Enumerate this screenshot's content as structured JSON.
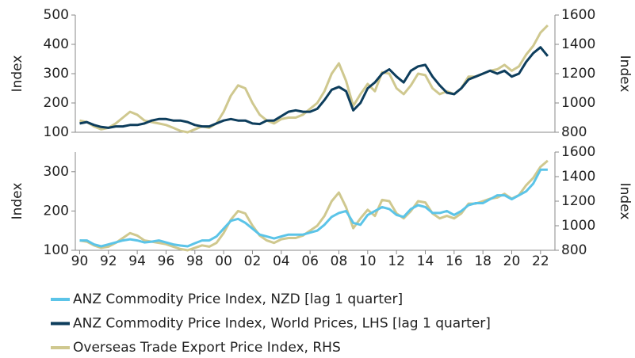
{
  "chart_data": [
    {
      "type": "line",
      "x": [
        1990,
        1990.5,
        1991,
        1991.5,
        1992,
        1992.5,
        1993,
        1993.5,
        1994,
        1994.5,
        1995,
        1995.5,
        1996,
        1996.5,
        1997,
        1997.5,
        1998,
        1998.5,
        1999,
        1999.5,
        2000,
        2000.5,
        2001,
        2001.5,
        2002,
        2002.5,
        2003,
        2003.5,
        2004,
        2004.5,
        2005,
        2005.5,
        2006,
        2006.5,
        2007,
        2007.5,
        2008,
        2008.5,
        2009,
        2009.5,
        2010,
        2010.5,
        2011,
        2011.5,
        2012,
        2012.5,
        2013,
        2013.5,
        2014,
        2014.5,
        2015,
        2015.5,
        2016,
        2016.5,
        2017,
        2017.5,
        2018,
        2018.5,
        2019,
        2019.5,
        2020,
        2020.5,
        2021,
        2021.5,
        2022,
        2022.5
      ],
      "series": [
        {
          "color": "#cfc88f",
          "axis": "y2",
          "values": [
            880,
            870,
            840,
            820,
            830,
            860,
            900,
            940,
            920,
            880,
            870,
            860,
            850,
            830,
            810,
            800,
            820,
            840,
            830,
            860,
            940,
            1050,
            1120,
            1100,
            1000,
            920,
            880,
            860,
            890,
            900,
            900,
            920,
            960,
            1000,
            1080,
            1200,
            1270,
            1150,
            980,
            1060,
            1130,
            1080,
            1210,
            1200,
            1100,
            1060,
            1120,
            1200,
            1190,
            1100,
            1060,
            1080,
            1060,
            1100,
            1180,
            1180,
            1200,
            1220,
            1230,
            1260,
            1220,
            1250,
            1330,
            1390,
            1480,
            1530
          ]
        },
        {
          "color": "#0d3d5c",
          "values": [
            130,
            135,
            125,
            118,
            115,
            120,
            120,
            125,
            125,
            130,
            140,
            145,
            145,
            140,
            140,
            135,
            125,
            120,
            120,
            130,
            140,
            145,
            140,
            140,
            130,
            128,
            140,
            140,
            155,
            170,
            175,
            170,
            170,
            180,
            210,
            245,
            255,
            240,
            175,
            200,
            250,
            270,
            300,
            315,
            290,
            270,
            310,
            325,
            330,
            290,
            260,
            235,
            230,
            250,
            280,
            290,
            300,
            310,
            300,
            310,
            290,
            300,
            340,
            370,
            390,
            360
          ]
        }
      ],
      "xlim": [
        1989.7,
        2023
      ],
      "ylim": [
        100,
        500
      ],
      "yticks": [
        100,
        200,
        300,
        400,
        500
      ],
      "y2lim": [
        800,
        1600
      ],
      "y2ticks": [
        800,
        1000,
        1200,
        1400,
        1600
      ],
      "ylabel": "Index",
      "y2label": "Index"
    },
    {
      "type": "line",
      "x": [
        1990,
        1990.5,
        1991,
        1991.5,
        1992,
        1992.5,
        1993,
        1993.5,
        1994,
        1994.5,
        1995,
        1995.5,
        1996,
        1996.5,
        1997,
        1997.5,
        1998,
        1998.5,
        1999,
        1999.5,
        2000,
        2000.5,
        2001,
        2001.5,
        2002,
        2002.5,
        2003,
        2003.5,
        2004,
        2004.5,
        2005,
        2005.5,
        2006,
        2006.5,
        2007,
        2007.5,
        2008,
        2008.5,
        2009,
        2009.5,
        2010,
        2010.5,
        2011,
        2011.5,
        2012,
        2012.5,
        2013,
        2013.5,
        2014,
        2014.5,
        2015,
        2015.5,
        2016,
        2016.5,
        2017,
        2017.5,
        2018,
        2018.5,
        2019,
        2019.5,
        2020,
        2020.5,
        2021,
        2021.5,
        2022,
        2022.5
      ],
      "series": [
        {
          "color": "#cfc88f",
          "axis": "y2",
          "values": [
            880,
            870,
            840,
            820,
            830,
            860,
            900,
            940,
            920,
            880,
            870,
            860,
            850,
            830,
            810,
            800,
            820,
            840,
            830,
            860,
            940,
            1050,
            1120,
            1100,
            1000,
            920,
            880,
            860,
            890,
            900,
            900,
            920,
            960,
            1000,
            1080,
            1200,
            1270,
            1150,
            980,
            1060,
            1130,
            1080,
            1210,
            1200,
            1100,
            1060,
            1120,
            1200,
            1190,
            1100,
            1060,
            1080,
            1060,
            1100,
            1180,
            1180,
            1200,
            1220,
            1230,
            1260,
            1220,
            1250,
            1330,
            1390,
            1480,
            1530
          ]
        },
        {
          "color": "#5bc4e8",
          "values": [
            125,
            125,
            115,
            110,
            115,
            120,
            125,
            128,
            125,
            120,
            122,
            125,
            120,
            115,
            112,
            110,
            118,
            125,
            125,
            135,
            155,
            175,
            180,
            170,
            155,
            140,
            135,
            130,
            135,
            140,
            140,
            140,
            145,
            150,
            165,
            185,
            195,
            200,
            170,
            165,
            190,
            200,
            210,
            205,
            190,
            185,
            205,
            215,
            210,
            195,
            195,
            200,
            190,
            200,
            215,
            220,
            220,
            230,
            240,
            240,
            230,
            240,
            250,
            270,
            305,
            305
          ]
        }
      ],
      "xlim": [
        1989.7,
        2023
      ],
      "xticks": [
        {
          "value": 1990,
          "label": "90"
        },
        {
          "value": 1992,
          "label": "92"
        },
        {
          "value": 1994,
          "label": "94"
        },
        {
          "value": 1996,
          "label": "96"
        },
        {
          "value": 1998,
          "label": "98"
        },
        {
          "value": 2000,
          "label": "00"
        },
        {
          "value": 2002,
          "label": "02"
        },
        {
          "value": 2004,
          "label": "04"
        },
        {
          "value": 2006,
          "label": "06"
        },
        {
          "value": 2008,
          "label": "08"
        },
        {
          "value": 2010,
          "label": "10"
        },
        {
          "value": 2012,
          "label": "12"
        },
        {
          "value": 2014,
          "label": "14"
        },
        {
          "value": 2016,
          "label": "16"
        },
        {
          "value": 2018,
          "label": "18"
        },
        {
          "value": 2020,
          "label": "20"
        },
        {
          "value": 2022,
          "label": "22"
        }
      ],
      "ylim": [
        100,
        350
      ],
      "yticks": [
        100,
        200,
        300
      ],
      "y2lim": [
        800,
        1600
      ],
      "y2ticks": [
        800,
        1000,
        1200,
        1400,
        1600
      ],
      "ylabel": "Index",
      "y2label": "Index"
    }
  ],
  "legend": [
    {
      "name": "ANZ Commodity Price Index, NZD [lag 1 quarter]",
      "color": "#5bc4e8"
    },
    {
      "name": "ANZ Commodity Price Index, World Prices, LHS [lag 1 quarter]",
      "color": "#0d3d5c"
    },
    {
      "name": "Overseas Trade Export Price Index, RHS",
      "color": "#cfc88f"
    }
  ]
}
